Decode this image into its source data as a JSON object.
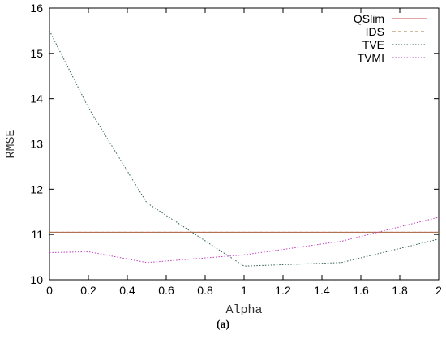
{
  "caption": "(a)",
  "chart_data": {
    "type": "line",
    "xlabel": "Alpha",
    "ylabel": "RMSE",
    "xlim": [
      0,
      2
    ],
    "ylim": [
      10,
      16
    ],
    "xticks": [
      "0",
      "0.2",
      "0.4",
      "0.6",
      "0.8",
      "1",
      "1.2",
      "1.4",
      "1.6",
      "1.8",
      "2"
    ],
    "yticks": [
      "10",
      "11",
      "12",
      "13",
      "14",
      "15",
      "16"
    ],
    "grid": false,
    "legend_position": "top-right",
    "series": [
      {
        "name": "QSlim",
        "color": "#c0504d",
        "dash": "solid",
        "x": [
          0,
          2
        ],
        "y": [
          11.05,
          11.05
        ]
      },
      {
        "name": "IDS",
        "color": "#9c7a3c",
        "dash": "dashed",
        "x": [
          0,
          2
        ],
        "y": [
          11.05,
          11.05
        ]
      },
      {
        "name": "TVE",
        "color": "#2f5f4f",
        "dash": "dotted",
        "x": [
          0,
          0.2,
          0.5,
          1,
          1.5,
          2
        ],
        "y": [
          15.5,
          13.8,
          11.7,
          10.3,
          10.38,
          10.9
        ]
      },
      {
        "name": "TVMI",
        "color": "#c040c0",
        "dash": "dotted",
        "x": [
          0,
          0.2,
          0.5,
          1,
          1.5,
          2
        ],
        "y": [
          10.6,
          10.62,
          10.38,
          10.55,
          10.85,
          11.38
        ]
      }
    ]
  }
}
